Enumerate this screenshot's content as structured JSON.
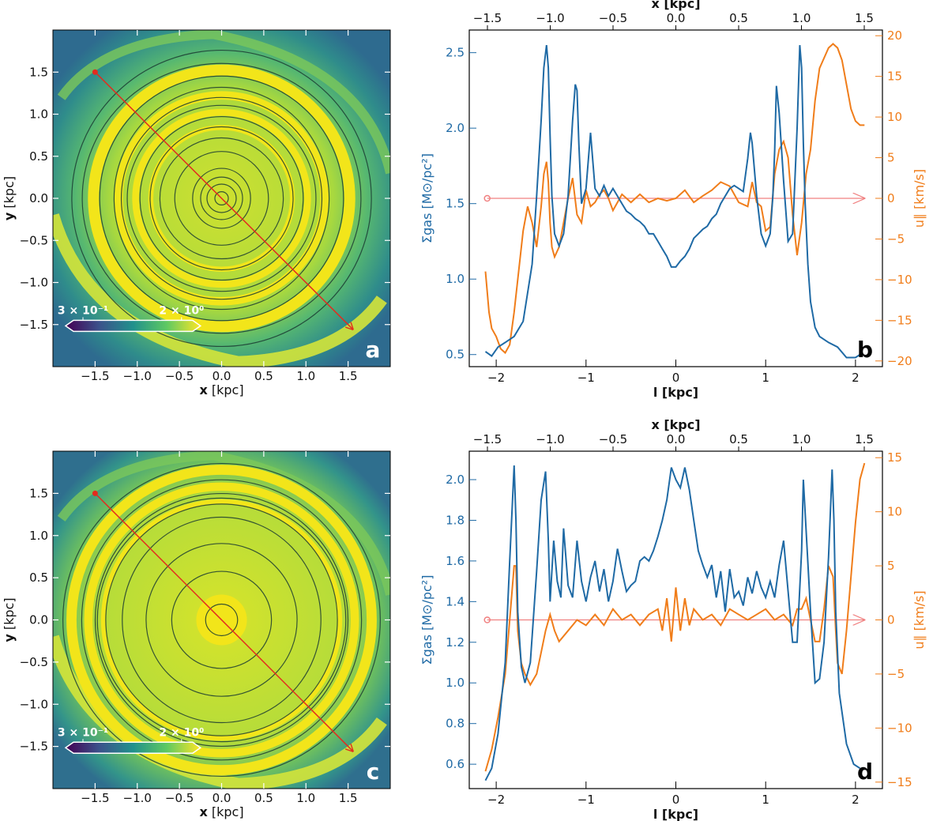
{
  "chart_data": [
    {
      "type": "heatmap",
      "panel": "a",
      "xlabel_bold": "x",
      "xlabel_rest": " [kpc]",
      "ylabel_bold": "y",
      "ylabel_rest": " [kpc]",
      "xlim": [
        -2.0,
        2.0
      ],
      "ylim": [
        -2.0,
        2.0
      ],
      "xticks": [
        -1.5,
        -1.0,
        -0.5,
        0.0,
        0.5,
        1.0,
        1.5
      ],
      "yticks": [
        -1.5,
        -1.0,
        -0.5,
        0.0,
        0.5,
        1.0,
        1.5
      ],
      "colorbar": {
        "min_label": "3 × 10⁻¹",
        "max_label": "2 × 10⁰"
      },
      "arrow": {
        "start": [
          -1.5,
          1.5
        ],
        "end": [
          1.55,
          -1.55
        ]
      },
      "bright_rings": [
        {
          "r": 1.52,
          "w": 0.13,
          "kind": "yellow"
        },
        {
          "r": 1.22,
          "w": 0.1,
          "kind": "yellow"
        },
        {
          "r": 1.02,
          "w": 0.08,
          "kind": "yellow"
        },
        {
          "r": 0.84,
          "w": 0.06,
          "kind": "yellow"
        }
      ],
      "contours": [
        0.08,
        0.17,
        0.25,
        0.35,
        0.55,
        0.72,
        0.86,
        0.98,
        1.1,
        1.18,
        1.3,
        1.45,
        1.62,
        1.78
      ]
    },
    {
      "type": "line",
      "panel": "b",
      "xlabel": "l [kpc]",
      "top_xlabel": "x [kpc]",
      "ylabel_left": "Σgas [M⊙/pc²]",
      "ylabel_right": "u∥ [km/s]",
      "xlim": [
        -2.3,
        2.3
      ],
      "ylim_left": [
        0.42,
        2.65
      ],
      "ylim_right": [
        -20.7,
        20.7
      ],
      "xticks": [
        -2,
        -1,
        0,
        1,
        2
      ],
      "yticks_left": [
        0.5,
        1.0,
        1.5,
        2.0,
        2.5
      ],
      "yticks_right": [
        -20,
        -15,
        -10,
        -5,
        0,
        5,
        10,
        15,
        20
      ],
      "top_ticks": [
        -1.5,
        -1.0,
        -0.5,
        0.0,
        0.5,
        1.0,
        1.5
      ],
      "series": [
        {
          "name": "Σgas",
          "axis": "left",
          "color": "#1f6aa5",
          "x": [
            -2.12,
            -2.05,
            -1.98,
            -1.9,
            -1.8,
            -1.7,
            -1.6,
            -1.55,
            -1.5,
            -1.47,
            -1.44,
            -1.42,
            -1.4,
            -1.38,
            -1.35,
            -1.3,
            -1.25,
            -1.2,
            -1.15,
            -1.12,
            -1.1,
            -1.08,
            -1.05,
            -1.0,
            -0.95,
            -0.9,
            -0.85,
            -0.8,
            -0.75,
            -0.7,
            -0.65,
            -0.6,
            -0.55,
            -0.5,
            -0.45,
            -0.4,
            -0.35,
            -0.3,
            -0.25,
            -0.2,
            -0.15,
            -0.1,
            -0.05,
            0.0,
            0.05,
            0.1,
            0.15,
            0.2,
            0.25,
            0.3,
            0.35,
            0.4,
            0.45,
            0.5,
            0.55,
            0.6,
            0.65,
            0.7,
            0.75,
            0.8,
            0.83,
            0.85,
            0.9,
            0.95,
            1.0,
            1.05,
            1.08,
            1.1,
            1.12,
            1.15,
            1.2,
            1.25,
            1.3,
            1.35,
            1.38,
            1.4,
            1.42,
            1.44,
            1.47,
            1.5,
            1.55,
            1.6,
            1.7,
            1.8,
            1.9,
            2.0,
            2.05
          ],
          "values": [
            0.52,
            0.49,
            0.55,
            0.58,
            0.62,
            0.72,
            1.1,
            1.55,
            2.05,
            2.4,
            2.55,
            2.4,
            1.95,
            1.55,
            1.3,
            1.22,
            1.3,
            1.55,
            2.05,
            2.29,
            2.25,
            1.9,
            1.5,
            1.6,
            1.97,
            1.6,
            1.55,
            1.62,
            1.55,
            1.6,
            1.55,
            1.5,
            1.45,
            1.43,
            1.4,
            1.38,
            1.35,
            1.3,
            1.3,
            1.25,
            1.2,
            1.15,
            1.08,
            1.08,
            1.12,
            1.15,
            1.2,
            1.27,
            1.3,
            1.33,
            1.35,
            1.4,
            1.43,
            1.5,
            1.55,
            1.6,
            1.62,
            1.6,
            1.58,
            1.8,
            1.97,
            1.9,
            1.55,
            1.3,
            1.22,
            1.3,
            1.55,
            1.85,
            2.28,
            2.1,
            1.65,
            1.25,
            1.3,
            2.0,
            2.55,
            2.4,
            1.9,
            1.5,
            1.1,
            0.85,
            0.68,
            0.62,
            0.58,
            0.55,
            0.48,
            0.48,
            0.5
          ]
        },
        {
          "name": "u∥",
          "axis": "right",
          "color": "#f07d1a",
          "x": [
            -2.12,
            -2.08,
            -2.05,
            -2.0,
            -1.95,
            -1.9,
            -1.85,
            -1.8,
            -1.75,
            -1.7,
            -1.65,
            -1.6,
            -1.55,
            -1.5,
            -1.47,
            -1.44,
            -1.42,
            -1.4,
            -1.38,
            -1.35,
            -1.3,
            -1.25,
            -1.2,
            -1.15,
            -1.1,
            -1.05,
            -1.0,
            -0.95,
            -0.9,
            -0.85,
            -0.8,
            -0.75,
            -0.7,
            -0.6,
            -0.5,
            -0.4,
            -0.3,
            -0.2,
            -0.1,
            0.0,
            0.1,
            0.2,
            0.3,
            0.4,
            0.5,
            0.6,
            0.7,
            0.8,
            0.85,
            0.9,
            0.95,
            1.0,
            1.05,
            1.1,
            1.15,
            1.2,
            1.25,
            1.3,
            1.35,
            1.4,
            1.45,
            1.5,
            1.55,
            1.6,
            1.7,
            1.75,
            1.8,
            1.85,
            1.9,
            1.95,
            2.0,
            2.05,
            2.1
          ],
          "values": [
            -9,
            -14,
            -16,
            -17,
            -18.5,
            -19,
            -18,
            -14,
            -9,
            -4,
            -1,
            -3,
            -6,
            -1,
            3,
            4.5,
            2,
            -3,
            -6,
            -7.2,
            -6,
            -3,
            0,
            2.5,
            -2,
            -3,
            1,
            -1,
            -0.5,
            0.5,
            1,
            0,
            -1.5,
            0.5,
            -0.5,
            0.5,
            -0.5,
            0,
            -0.3,
            0,
            1,
            -0.5,
            0.3,
            1,
            2,
            1.5,
            -0.5,
            -1,
            2,
            -0.5,
            -1,
            -4,
            -3.5,
            3,
            6,
            7,
            5,
            -2,
            -7,
            -3,
            3,
            6,
            12,
            16,
            18.5,
            19,
            18.5,
            17,
            14,
            11,
            9.5,
            9,
            9
          ]
        },
        {
          "name": "direction-arrow",
          "axis": "right",
          "color": "#f08080",
          "x": [
            -2.1,
            2.1
          ],
          "values": [
            0,
            0
          ]
        }
      ]
    },
    {
      "type": "heatmap",
      "panel": "c",
      "xlabel_bold": "x",
      "xlabel_rest": " [kpc]",
      "ylabel_bold": "y",
      "ylabel_rest": " [kpc]",
      "xlim": [
        -2.0,
        2.0
      ],
      "ylim": [
        -2.0,
        2.0
      ],
      "xticks": [
        -1.5,
        -1.0,
        -0.5,
        0.0,
        0.5,
        1.0,
        1.5
      ],
      "yticks": [
        -1.5,
        -1.0,
        -0.5,
        0.0,
        0.5,
        1.0,
        1.5
      ],
      "colorbar": {
        "min_label": "3 × 10⁻¹",
        "max_label": "2 × 10⁰"
      },
      "arrow": {
        "start": [
          -1.5,
          1.5
        ],
        "end": [
          1.55,
          -1.55
        ]
      },
      "bright_rings": [
        {
          "r": 1.78,
          "w": 0.12,
          "kind": "yellow"
        },
        {
          "r": 1.58,
          "w": 0.1,
          "kind": "yellow"
        },
        {
          "r": 1.4,
          "w": 0.06,
          "kind": "yellow"
        },
        {
          "r": 0.15,
          "w": 0.3,
          "kind": "yellow"
        }
      ],
      "contours": [
        0.19,
        0.58,
        0.9,
        1.2,
        1.36,
        1.45,
        1.52,
        1.68,
        1.85
      ]
    },
    {
      "type": "line",
      "panel": "d",
      "xlabel": "l [kpc]",
      "top_xlabel": "x [kpc]",
      "ylabel_left": "Σgas [M⊙/pc²]",
      "ylabel_right": "u∥ [km/s]",
      "xlim": [
        -2.3,
        2.3
      ],
      "ylim_left": [
        0.48,
        2.14
      ],
      "ylim_right": [
        -15.6,
        15.6
      ],
      "xticks": [
        -2,
        -1,
        0,
        1,
        2
      ],
      "yticks_left": [
        0.6,
        0.8,
        1.0,
        1.2,
        1.4,
        1.6,
        1.8,
        2.0
      ],
      "yticks_right": [
        -15,
        -10,
        -5,
        0,
        5,
        10,
        15
      ],
      "top_ticks": [
        -1.5,
        -1.0,
        -0.5,
        0.0,
        0.5,
        1.0,
        1.5
      ],
      "series": [
        {
          "name": "Σgas",
          "axis": "left",
          "color": "#1f6aa5",
          "x": [
            -2.12,
            -2.05,
            -1.98,
            -1.9,
            -1.85,
            -1.8,
            -1.78,
            -1.76,
            -1.72,
            -1.68,
            -1.62,
            -1.55,
            -1.5,
            -1.45,
            -1.42,
            -1.4,
            -1.36,
            -1.32,
            -1.28,
            -1.25,
            -1.2,
            -1.15,
            -1.1,
            -1.05,
            -1.0,
            -0.95,
            -0.9,
            -0.85,
            -0.8,
            -0.75,
            -0.7,
            -0.65,
            -0.6,
            -0.55,
            -0.5,
            -0.45,
            -0.4,
            -0.35,
            -0.3,
            -0.25,
            -0.2,
            -0.15,
            -0.1,
            -0.05,
            0.0,
            0.05,
            0.1,
            0.15,
            0.2,
            0.25,
            0.3,
            0.35,
            0.4,
            0.45,
            0.5,
            0.55,
            0.6,
            0.65,
            0.7,
            0.75,
            0.8,
            0.85,
            0.9,
            0.95,
            1.0,
            1.05,
            1.1,
            1.15,
            1.2,
            1.25,
            1.3,
            1.35,
            1.4,
            1.42,
            1.45,
            1.5,
            1.55,
            1.6,
            1.65,
            1.7,
            1.74,
            1.76,
            1.78,
            1.82,
            1.9,
            1.98,
            2.05
          ],
          "values": [
            0.52,
            0.58,
            0.75,
            1.1,
            1.6,
            2.07,
            1.8,
            1.35,
            1.08,
            1.0,
            1.1,
            1.55,
            1.9,
            2.04,
            1.7,
            1.4,
            1.7,
            1.5,
            1.42,
            1.76,
            1.48,
            1.42,
            1.7,
            1.5,
            1.4,
            1.52,
            1.6,
            1.45,
            1.56,
            1.4,
            1.5,
            1.66,
            1.55,
            1.45,
            1.48,
            1.5,
            1.6,
            1.62,
            1.6,
            1.65,
            1.72,
            1.8,
            1.9,
            2.06,
            2.0,
            1.96,
            2.06,
            1.95,
            1.8,
            1.65,
            1.58,
            1.52,
            1.58,
            1.42,
            1.55,
            1.35,
            1.56,
            1.42,
            1.45,
            1.38,
            1.52,
            1.44,
            1.55,
            1.47,
            1.42,
            1.5,
            1.42,
            1.58,
            1.7,
            1.45,
            1.2,
            1.2,
            1.65,
            2.0,
            1.75,
            1.35,
            1.0,
            1.02,
            1.2,
            1.62,
            2.05,
            1.8,
            1.35,
            0.95,
            0.7,
            0.6,
            0.58
          ]
        },
        {
          "name": "u∥",
          "axis": "right",
          "color": "#f07d1a",
          "x": [
            -2.12,
            -2.05,
            -1.98,
            -1.9,
            -1.85,
            -1.8,
            -1.78,
            -1.76,
            -1.72,
            -1.68,
            -1.62,
            -1.55,
            -1.5,
            -1.45,
            -1.4,
            -1.35,
            -1.3,
            -1.2,
            -1.1,
            -1.0,
            -0.9,
            -0.8,
            -0.7,
            -0.6,
            -0.5,
            -0.4,
            -0.3,
            -0.2,
            -0.15,
            -0.1,
            -0.05,
            0.0,
            0.05,
            0.1,
            0.15,
            0.2,
            0.3,
            0.4,
            0.5,
            0.6,
            0.7,
            0.8,
            0.9,
            1.0,
            1.1,
            1.2,
            1.3,
            1.35,
            1.4,
            1.45,
            1.5,
            1.55,
            1.6,
            1.65,
            1.7,
            1.75,
            1.78,
            1.8,
            1.85,
            1.9,
            1.95,
            2.0,
            2.05,
            2.1
          ],
          "values": [
            -14,
            -12,
            -9,
            -5,
            0,
            5,
            5,
            -1,
            -4,
            -5,
            -6,
            -5,
            -3,
            -1,
            0.5,
            -1,
            -2,
            -1,
            0,
            -0.5,
            0.5,
            -0.5,
            1,
            0,
            0.5,
            -0.5,
            0.5,
            1,
            -1,
            2,
            -2,
            3,
            -1,
            2,
            -0.5,
            1,
            0,
            0.5,
            -0.5,
            1,
            0.5,
            0,
            0.5,
            1,
            0,
            0.5,
            -0.5,
            1,
            1,
            2,
            0,
            -2,
            -2,
            1,
            5,
            4,
            -1,
            -4,
            -5,
            -1,
            4,
            9,
            13,
            14.5
          ]
        },
        {
          "name": "direction-arrow",
          "axis": "right",
          "color": "#f08080",
          "x": [
            -2.1,
            2.1
          ],
          "values": [
            0,
            0
          ]
        }
      ]
    }
  ],
  "panel_letters": [
    "a",
    "b",
    "c",
    "d"
  ],
  "colors": {
    "sigma": "#1f6aa5",
    "velocity": "#f07d1a",
    "arrow": "#e32b1e",
    "zero_line": "#f08080",
    "bg_map": "#3c9a8c",
    "ring_yellow": "#f2e51a"
  }
}
